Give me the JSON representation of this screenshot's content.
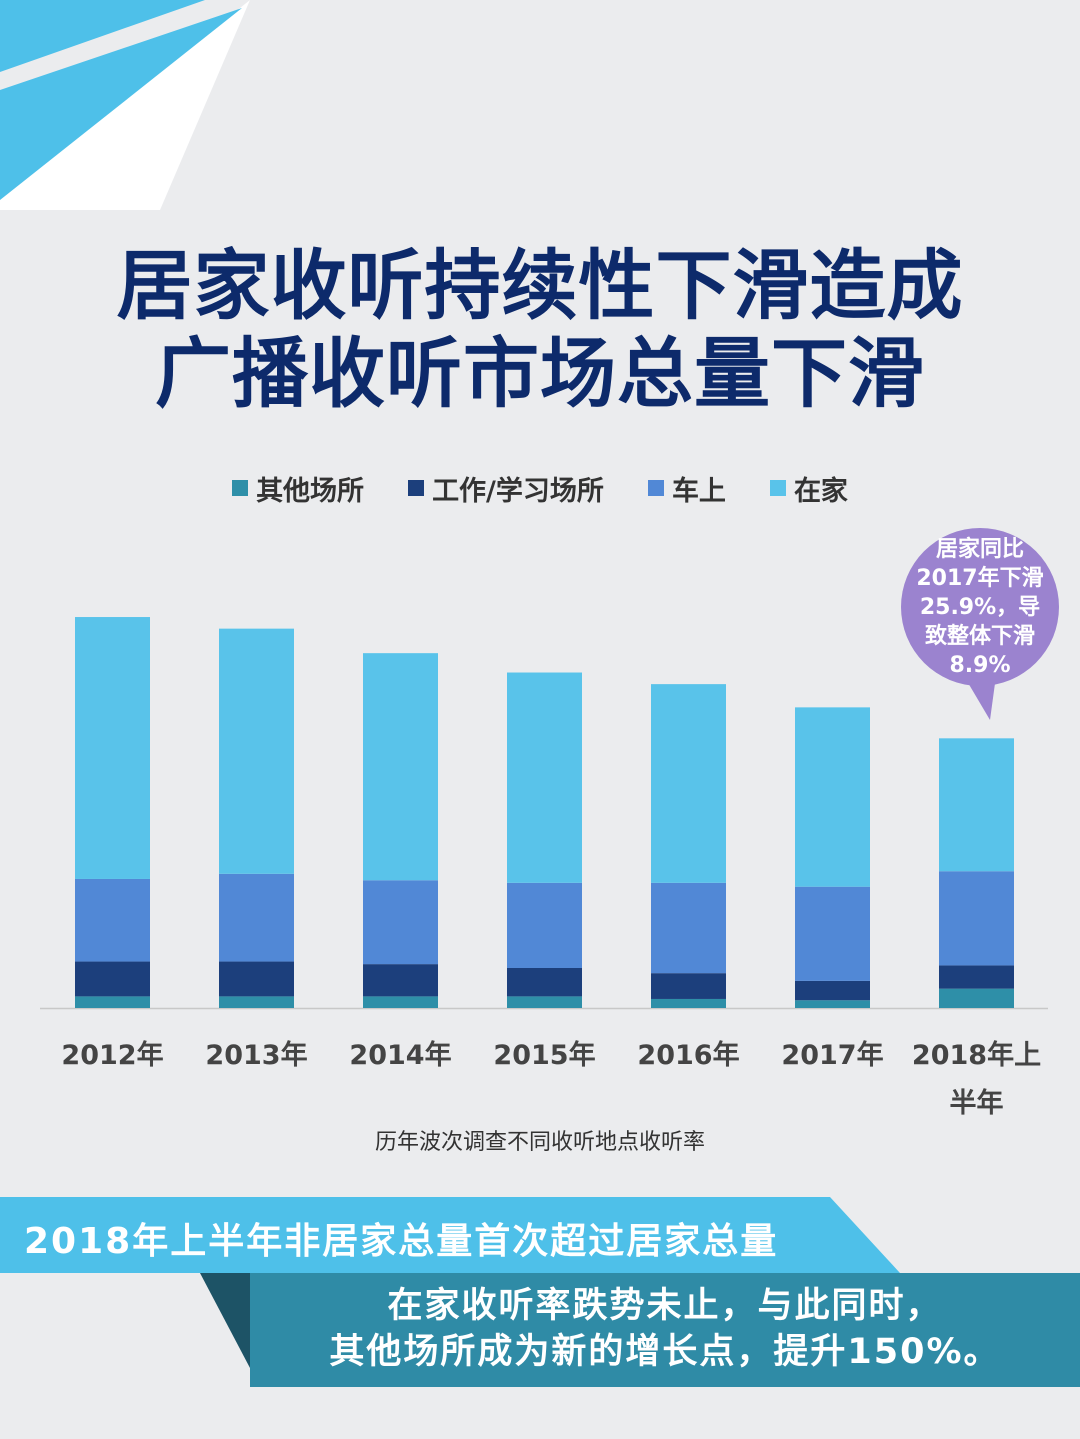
{
  "title": {
    "line1": "居家收听持续性下滑造成",
    "line2": "广播收听市场总量下滑"
  },
  "colors": {
    "background": "#ebecee",
    "title": "#0d2a6b",
    "deco_light": "#4ec0e9",
    "callout": "#9b83cf",
    "band_light": "#4ec0e9",
    "band_mid": "#2f8ba6",
    "band_dark": "#1d5366"
  },
  "callout": {
    "lines": [
      "居家同比",
      "2017年下滑",
      "25.9%，导",
      "致整体下滑",
      "8.9%"
    ]
  },
  "chart_data": {
    "type": "bar",
    "stacked": true,
    "categories": [
      "2012年",
      "2013年",
      "2014年",
      "2015年",
      "2016年",
      "2017年",
      "2018年上半年"
    ],
    "category_label_lines": [
      [
        "2012年"
      ],
      [
        "2013年"
      ],
      [
        "2014年"
      ],
      [
        "2015年"
      ],
      [
        "2016年"
      ],
      [
        "2017年"
      ],
      [
        "2018年上",
        "半年"
      ]
    ],
    "series": [
      {
        "name": "其他场所",
        "color": "#2e8fa8",
        "values": [
          0.9,
          0.9,
          0.9,
          0.9,
          0.7,
          0.6,
          1.5
        ]
      },
      {
        "name": "工作/学习场所",
        "color": "#1c3f7c",
        "values": [
          2.7,
          2.7,
          2.5,
          2.2,
          2.0,
          1.5,
          1.8
        ]
      },
      {
        "name": "车上",
        "color": "#5188d6",
        "values": [
          6.4,
          6.8,
          6.5,
          6.6,
          7.0,
          7.3,
          7.3
        ]
      },
      {
        "name": "在家",
        "color": "#59c3ea",
        "values": [
          20.3,
          19.0,
          17.6,
          16.3,
          15.4,
          13.9,
          10.3
        ]
      }
    ],
    "ylim": [
      0,
      31
    ],
    "xlabel": "历年波次调查不同收听地点收听率",
    "ylabel": "",
    "legend_position": "top",
    "grid": false
  },
  "bottom": {
    "headline": "2018年上半年非居家总量首次超过居家总量",
    "text_line1": "在家收听率跌势未止，与此同时，",
    "text_line2": "其他场所成为新的增长点，提升150%。"
  }
}
